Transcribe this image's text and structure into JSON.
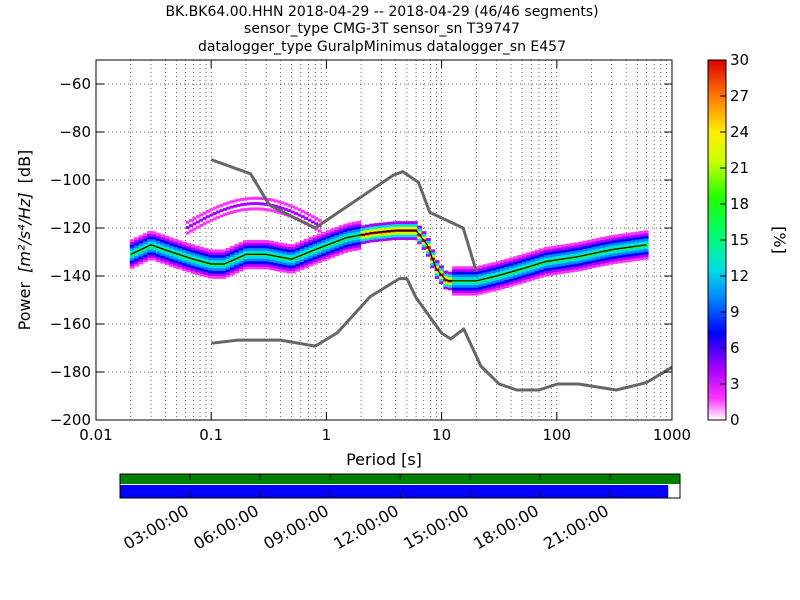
{
  "title_lines": [
    "BK.BK64.00.HHN   2018-04-29 -- 2018-04-29  (46/46 segments)",
    "sensor_type CMG-3T sensor_sn T39747",
    "datalogger_type GuralpMinimus datalogger_sn E457"
  ],
  "chart_data": {
    "type": "heatmap",
    "xlabel": "Period [s]",
    "ylabel_main": "Power",
    "ylabel_unit": "[m²/s⁴/Hz]",
    "ylabel_db": "[dB]",
    "x_scale": "log",
    "xlim": [
      0.01,
      1000
    ],
    "ylim": [
      -200,
      -50
    ],
    "x_ticks": [
      0.01,
      0.1,
      1,
      10,
      100,
      1000
    ],
    "x_tick_labels": [
      "0.01",
      "0.1",
      "1",
      "10",
      "100",
      "1000"
    ],
    "y_ticks": [
      -200,
      -180,
      -160,
      -140,
      -120,
      -100,
      -80,
      -60
    ],
    "y_tick_labels": [
      "−200",
      "−180",
      "−160",
      "−140",
      "−120",
      "−100",
      "−80",
      "−60"
    ],
    "grid": "dotted",
    "colorbar": {
      "label": "[%]",
      "min": 0,
      "max": 30,
      "ticks": [
        0,
        3,
        6,
        9,
        12,
        15,
        18,
        21,
        24,
        27,
        30
      ],
      "tick_labels": [
        "0",
        "3",
        "6",
        "9",
        "12",
        "15",
        "18",
        "21",
        "24",
        "27",
        "30"
      ],
      "colormap": "pqlx"
    },
    "noise_model_high": {
      "periods": [
        0.1,
        0.22,
        0.32,
        0.8,
        3.8,
        4.6,
        6.3,
        7.9,
        15.4,
        20
      ],
      "db": [
        -91.5,
        -97.4,
        -110.5,
        -120,
        -98,
        -96.5,
        -101,
        -113.5,
        -120,
        -138
      ]
    },
    "noise_model_low": {
      "periods": [
        0.1,
        0.17,
        0.4,
        0.8,
        1.24,
        2.4,
        4.3,
        5,
        6,
        10,
        12,
        15.6,
        21.9,
        31.6,
        45,
        70,
        101,
        154,
        328,
        600,
        1000
      ],
      "db": [
        -168,
        -166.7,
        -166.7,
        -169.2,
        -163.7,
        -148.6,
        -141.1,
        -141.1,
        -149,
        -163.8,
        -166.2,
        -162.1,
        -177.5,
        -185,
        -187.5,
        -187.5,
        -185,
        -185,
        -187.5,
        -184.4,
        -178
      ]
    },
    "mode_curve": {
      "periods": [
        0.02,
        0.03,
        0.045,
        0.07,
        0.1,
        0.13,
        0.2,
        0.3,
        0.5,
        0.8,
        1.5,
        2.5,
        4,
        6,
        7.5,
        9,
        11,
        13,
        20,
        30,
        50,
        80,
        150,
        300,
        600
      ],
      "db": [
        -131,
        -127,
        -130,
        -133,
        -135,
        -135,
        -131,
        -131,
        -133,
        -129,
        -124,
        -122,
        -121,
        -121,
        -127,
        -137,
        -142,
        -142,
        -142,
        -140,
        -137,
        -134,
        -132,
        -129,
        -127
      ]
    }
  },
  "timeline": {
    "tick_labels": [
      "03:00:00",
      "06:00:00",
      "09:00:00",
      "12:00:00",
      "15:00:00",
      "18:00:00",
      "21:00:00"
    ],
    "coverage_fraction": 0.979,
    "colors": {
      "data": "#0000ff",
      "gaps": "#008000"
    }
  }
}
